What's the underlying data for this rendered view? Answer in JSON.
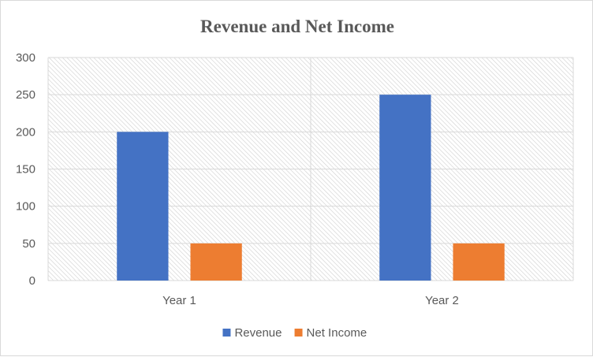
{
  "chart_data": {
    "type": "bar",
    "title": "Revenue and Net Income",
    "categories": [
      "Year 1",
      "Year 2"
    ],
    "series": [
      {
        "name": "Revenue",
        "values": [
          200,
          250
        ],
        "color": "#4472C4"
      },
      {
        "name": "Net Income",
        "values": [
          50,
          50
        ],
        "color": "#ED7D31"
      }
    ],
    "ylim": [
      0,
      300
    ],
    "yticks": [
      0,
      50,
      100,
      150,
      200,
      250,
      300
    ],
    "grid": true,
    "legend_position": "bottom",
    "plot_background": "hatched-light-gray"
  }
}
